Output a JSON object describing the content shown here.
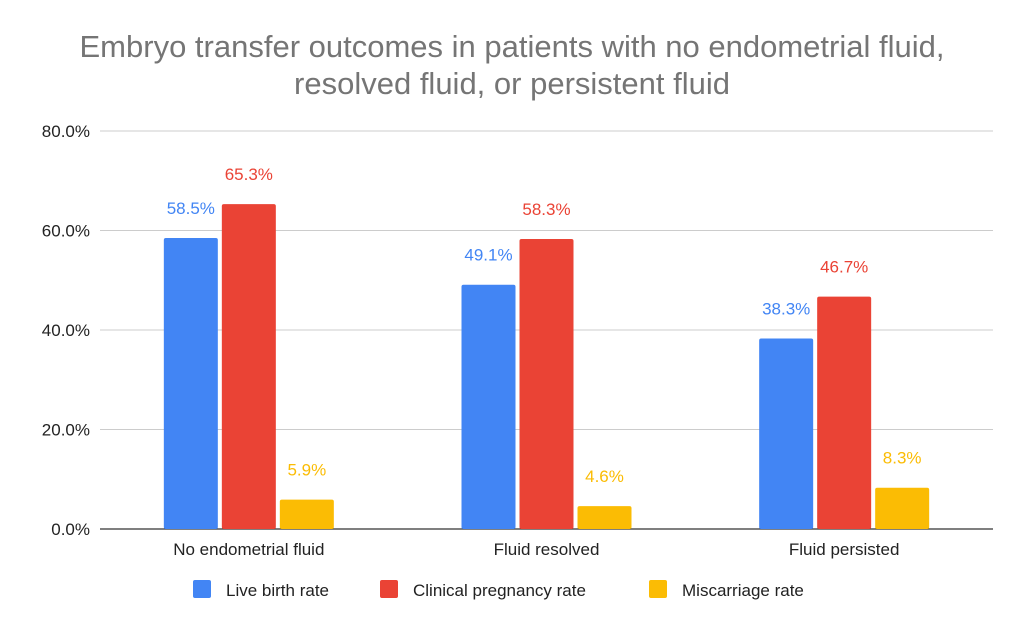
{
  "chart_data": {
    "type": "bar",
    "title_lines": [
      "Embryo transfer outcomes in patients with no endometrial fluid,",
      "resolved fluid, or persistent fluid"
    ],
    "categories": [
      "No endometrial fluid",
      "Fluid resolved",
      "Fluid persisted"
    ],
    "series": [
      {
        "name": "Live birth rate",
        "color": "#4285F4",
        "values": [
          58.5,
          49.1,
          38.3
        ],
        "labels": [
          "58.5%",
          "49.1%",
          "38.3%"
        ]
      },
      {
        "name": "Clinical pregnancy rate",
        "color": "#EA4335",
        "values": [
          65.3,
          58.3,
          46.7
        ],
        "labels": [
          "65.3%",
          "58.3%",
          "46.7%"
        ]
      },
      {
        "name": "Miscarriage rate",
        "color": "#FBBC04",
        "values": [
          5.9,
          4.6,
          8.3
        ],
        "labels": [
          "5.9%",
          "4.6%",
          "8.3%"
        ]
      }
    ],
    "ylim": [
      0,
      80
    ],
    "yticks": [
      0,
      20,
      40,
      60,
      80
    ],
    "ytick_labels": [
      "0.0%",
      "20.0%",
      "40.0%",
      "60.0%",
      "80.0%"
    ],
    "grid": true,
    "legend_position": "bottom"
  }
}
